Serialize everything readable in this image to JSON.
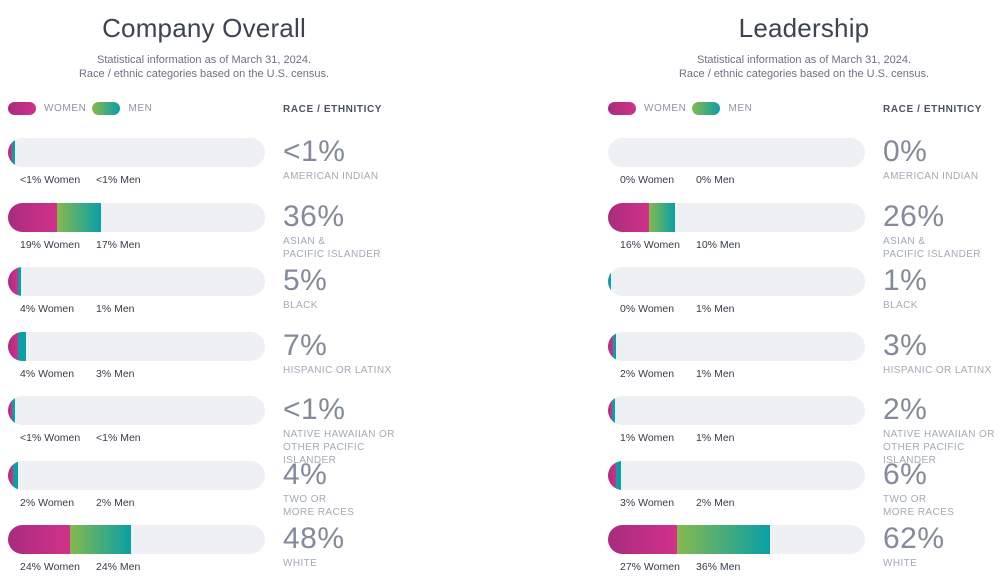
{
  "colors": {
    "women_gradient_start": "#a82c7e",
    "women_gradient_end": "#d23189",
    "men_gradient_start": "#86b94e",
    "men_gradient_end": "#0a9fa6",
    "bar_track": "#eef0f3",
    "percent_text": "#828b9b",
    "category_text": "#a3aab6"
  },
  "charts": [
    {
      "title": "Company Overall",
      "subtitle_line1": "Statistical information as of March 31, 2024.",
      "subtitle_line2": "Race / ethnic categories based on the U.S. census.",
      "legend_women": "WOMEN",
      "legend_men": "MEN",
      "column_header": "RACE / ETHNITICY",
      "rows": [
        {
          "category": "AMERICAN INDIAN",
          "total": "<1%",
          "women_label": "<1% Women",
          "men_label": "<1% Men",
          "women_pct": 0.5,
          "men_pct": 0.5
        },
        {
          "category": "ASIAN &\nPACIFIC ISLANDER",
          "total": "36%",
          "women_label": "19% Women",
          "men_label": "17% Men",
          "women_pct": 19,
          "men_pct": 17
        },
        {
          "category": "BLACK",
          "total": "5%",
          "women_label": "4% Women",
          "men_label": "1% Men",
          "women_pct": 4,
          "men_pct": 1
        },
        {
          "category": "HISPANIC OR LATINX",
          "total": "7%",
          "women_label": "4% Women",
          "men_label": "3% Men",
          "women_pct": 4,
          "men_pct": 3
        },
        {
          "category": "NATIVE HAWAIIAN OR\nOTHER PACIFIC ISLANDER",
          "total": "<1%",
          "women_label": "<1% Women",
          "men_label": "<1% Men",
          "women_pct": 0.5,
          "men_pct": 0.5
        },
        {
          "category": "TWO OR\nMORE RACES",
          "total": "4%",
          "women_label": "2% Women",
          "men_label": "2% Men",
          "women_pct": 2,
          "men_pct": 2
        },
        {
          "category": "WHITE",
          "total": "48%",
          "women_label": "24% Women",
          "men_label": "24% Men",
          "women_pct": 24,
          "men_pct": 24
        }
      ]
    },
    {
      "title": "Leadership",
      "subtitle_line1": "Statistical information as of March 31, 2024.",
      "subtitle_line2": "Race / ethnic categories based on the U.S. census.",
      "legend_women": "WOMEN",
      "legend_men": "MEN",
      "column_header": "RACE / ETHNITICY",
      "rows": [
        {
          "category": "AMERICAN INDIAN",
          "total": "0%",
          "women_label": "0% Women",
          "men_label": "0% Men",
          "women_pct": 0,
          "men_pct": 0
        },
        {
          "category": "ASIAN &\nPACIFIC ISLANDER",
          "total": "26%",
          "women_label": "16% Women",
          "men_label": "10% Men",
          "women_pct": 16,
          "men_pct": 10
        },
        {
          "category": "BLACK",
          "total": "1%",
          "women_label": "0% Women",
          "men_label": "1% Men",
          "women_pct": 0,
          "men_pct": 1
        },
        {
          "category": "HISPANIC OR LATINX",
          "total": "3%",
          "women_label": "2% Women",
          "men_label": "1% Men",
          "women_pct": 2,
          "men_pct": 1
        },
        {
          "category": "NATIVE HAWAIIAN OR\nOTHER PACIFIC ISLANDER",
          "total": "2%",
          "women_label": "1% Women",
          "men_label": "1% Men",
          "women_pct": 1,
          "men_pct": 1
        },
        {
          "category": "TWO OR\nMORE RACES",
          "total": "6%",
          "women_label": "3% Women",
          "men_label": "2% Men",
          "women_pct": 3,
          "men_pct": 2
        },
        {
          "category": "WHITE",
          "total": "62%",
          "women_label": "27% Women",
          "men_label": "36% Men",
          "women_pct": 27,
          "men_pct": 36
        }
      ]
    }
  ],
  "chart_data": [
    {
      "type": "bar",
      "orientation": "horizontal-stacked",
      "title": "Company Overall",
      "subtitle": "Statistical information as of March 31, 2024. Race / ethnic categories based on the U.S. census.",
      "categories": [
        "American Indian",
        "Asian & Pacific Islander",
        "Black",
        "Hispanic or Latinx",
        "Native Hawaiian or Other Pacific Islander",
        "Two or More Races",
        "White"
      ],
      "series": [
        {
          "name": "Women",
          "values": [
            0.5,
            19,
            4,
            4,
            0.5,
            2,
            24
          ]
        },
        {
          "name": "Men",
          "values": [
            0.5,
            17,
            1,
            3,
            0.5,
            2,
            24
          ]
        }
      ],
      "totals_label": [
        "<1%",
        "36%",
        "5%",
        "7%",
        "<1%",
        "4%",
        "48%"
      ],
      "xlim": [
        0,
        100
      ],
      "legend_position": "top-left",
      "grid": false
    },
    {
      "type": "bar",
      "orientation": "horizontal-stacked",
      "title": "Leadership",
      "subtitle": "Statistical information as of March 31, 2024. Race / ethnic categories based on the U.S. census.",
      "categories": [
        "American Indian",
        "Asian & Pacific Islander",
        "Black",
        "Hispanic or Latinx",
        "Native Hawaiian or Other Pacific Islander",
        "Two or More Races",
        "White"
      ],
      "series": [
        {
          "name": "Women",
          "values": [
            0,
            16,
            0,
            2,
            1,
            3,
            27
          ]
        },
        {
          "name": "Men",
          "values": [
            0,
            10,
            1,
            1,
            1,
            2,
            36
          ]
        }
      ],
      "totals_label": [
        "0%",
        "26%",
        "1%",
        "3%",
        "2%",
        "6%",
        "62%"
      ],
      "xlim": [
        0,
        100
      ],
      "legend_position": "top-left",
      "grid": false
    }
  ]
}
